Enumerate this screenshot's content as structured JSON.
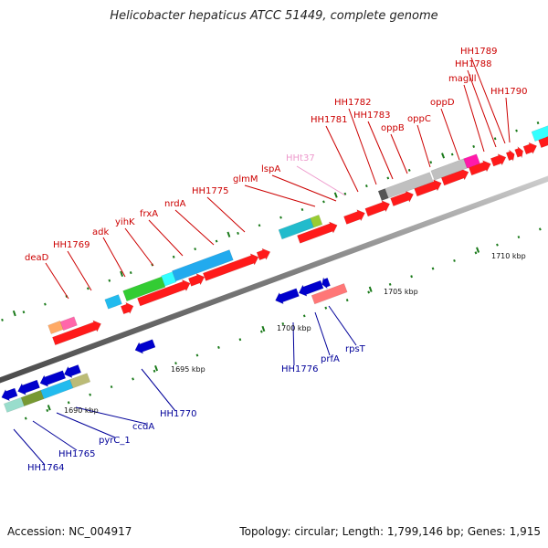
{
  "header": {
    "title": "Helicobacter hepaticus ATCC 51449, complete genome"
  },
  "footer": {
    "accession": "Accession: NC_004917",
    "summary": "Topology: circular; Length: 1,799,146 bp; Genes: 1,915"
  },
  "colors": {
    "forward_gene": "#ff0000",
    "reverse_gene": "#0000cc",
    "forward_label": "#cc0000",
    "reverse_label": "#000099",
    "rna_label": "#ee99cc",
    "axis": "#808080",
    "tick": "#1a7a1a"
  },
  "kbp_labels": [
    "1690 kbp",
    "1695 kbp",
    "1700 kbp",
    "1705 kbp",
    "1710 kbp"
  ],
  "forward_gene_labels": [
    "deaD",
    "HH1769",
    "adk",
    "yihK",
    "frxA",
    "nrdA",
    "HH1775",
    "glmM",
    "lspA",
    "HH1781",
    "HH1782",
    "HH1783",
    "oppB",
    "oppC",
    "oppD",
    "maglll",
    "HH1788",
    "HH1789",
    "HH1790"
  ],
  "rna_gene_labels": [
    "HHt37"
  ],
  "reverse_gene_labels": [
    "HH1764",
    "HH1765",
    "pyrC_1",
    "ccdA",
    "HH1770",
    "HH1776",
    "prfA",
    "rpsT"
  ]
}
